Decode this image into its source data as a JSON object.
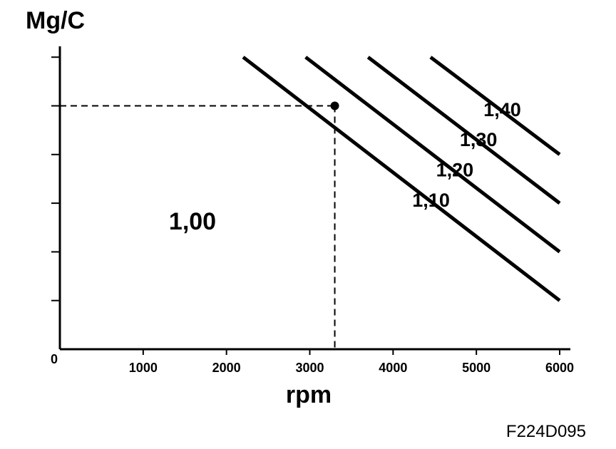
{
  "figure_code": "F224D095",
  "chart_data": {
    "type": "line",
    "title": "",
    "xlabel": "rpm",
    "ylabel": "Mg/C",
    "origin_label": "0",
    "xlim": [
      0,
      6000
    ],
    "xticks": [
      1000,
      2000,
      3000,
      4000,
      5000,
      6000
    ],
    "ylim": [
      0,
      6.2
    ],
    "y_minor_ticks": [
      1,
      2,
      3,
      4,
      5,
      6
    ],
    "region_label": "1,00",
    "series": [
      {
        "name": "1,10",
        "x": [
          2200,
          6000
        ],
        "y": [
          6,
          1
        ]
      },
      {
        "name": "1,20",
        "x": [
          2950,
          6000
        ],
        "y": [
          6,
          2
        ]
      },
      {
        "name": "1,30",
        "x": [
          3700,
          6000
        ],
        "y": [
          6,
          3
        ]
      },
      {
        "name": "1,40",
        "x": [
          4450,
          6000
        ],
        "y": [
          6,
          4
        ]
      }
    ],
    "marked_point": {
      "x": 3300,
      "y": 5
    },
    "grid": false
  }
}
